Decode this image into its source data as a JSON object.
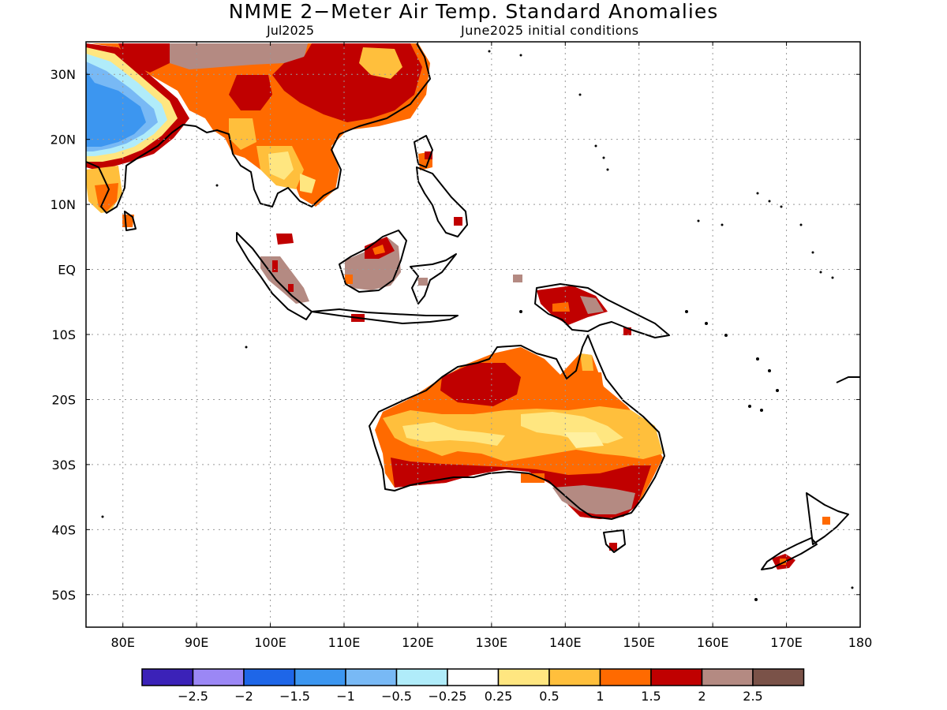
{
  "title": "NMME 2−Meter Air Temp. Standard Anomalies",
  "subtitle_left": "Jul2025",
  "subtitle_right": "June2025 initial conditions",
  "lat_ticks": [
    {
      "value": 30,
      "label": "30N"
    },
    {
      "value": 20,
      "label": "20N"
    },
    {
      "value": 10,
      "label": "10N"
    },
    {
      "value": 0,
      "label": "EQ"
    },
    {
      "value": -10,
      "label": "10S"
    },
    {
      "value": -20,
      "label": "20S"
    },
    {
      "value": -30,
      "label": "30S"
    },
    {
      "value": -40,
      "label": "40S"
    },
    {
      "value": -50,
      "label": "50S"
    }
  ],
  "lon_ticks": [
    {
      "value": 80,
      "label": "80E"
    },
    {
      "value": 90,
      "label": "90E"
    },
    {
      "value": 100,
      "label": "100E"
    },
    {
      "value": 110,
      "label": "110E"
    },
    {
      "value": 120,
      "label": "120E"
    },
    {
      "value": 130,
      "label": "130E"
    },
    {
      "value": 140,
      "label": "140E"
    },
    {
      "value": 150,
      "label": "150E"
    },
    {
      "value": 160,
      "label": "160E"
    },
    {
      "value": 170,
      "label": "170E"
    },
    {
      "value": 180,
      "label": "180"
    }
  ],
  "extent": {
    "lon": [
      75,
      180
    ],
    "lat": [
      -55,
      35
    ]
  },
  "legend": {
    "colors": [
      "#3b22b8",
      "#9b87f5",
      "#1e66e8",
      "#3c96f0",
      "#78b9f5",
      "#b0ecfa",
      "#ffffff",
      "#ffe680",
      "#ffbf3c",
      "#ff6a00",
      "#c00000",
      "#b48a82",
      "#7a5248"
    ],
    "labels": [
      "−2.5",
      "−2",
      "−1.5",
      "−1",
      "−0.5",
      "−0.25",
      "0.25",
      "0.5",
      "1",
      "1.5",
      "2",
      "2.5"
    ]
  }
}
